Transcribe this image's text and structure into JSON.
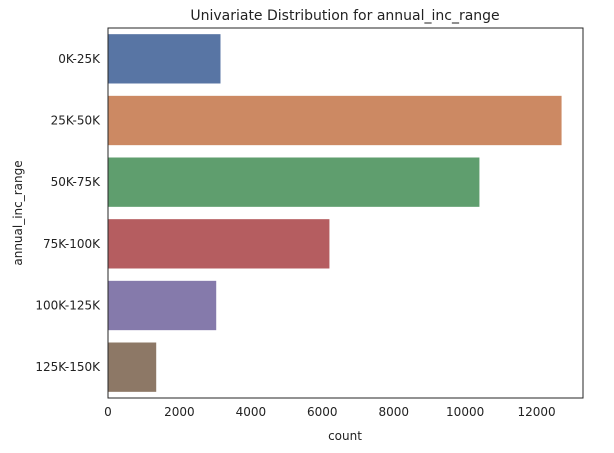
{
  "chart_data": {
    "type": "bar",
    "orientation": "horizontal",
    "title": "Univariate Distribution for annual_inc_range",
    "xlabel": "count",
    "ylabel": "annual_inc_range",
    "categories": [
      "0K-25K",
      "25K-50K",
      "50K-75K",
      "75K-100K",
      "100K-125K",
      "125K-150K"
    ],
    "values": [
      3150,
      12700,
      10400,
      6200,
      3030,
      1350
    ],
    "xlim": [
      0,
      13300
    ],
    "xticks": [
      0,
      2000,
      4000,
      6000,
      8000,
      10000,
      12000
    ],
    "grid": false,
    "legend": "none",
    "colors": [
      "#5875a4",
      "#cc8963",
      "#5f9e6e",
      "#b55d60",
      "#857aab",
      "#8d7866"
    ]
  }
}
